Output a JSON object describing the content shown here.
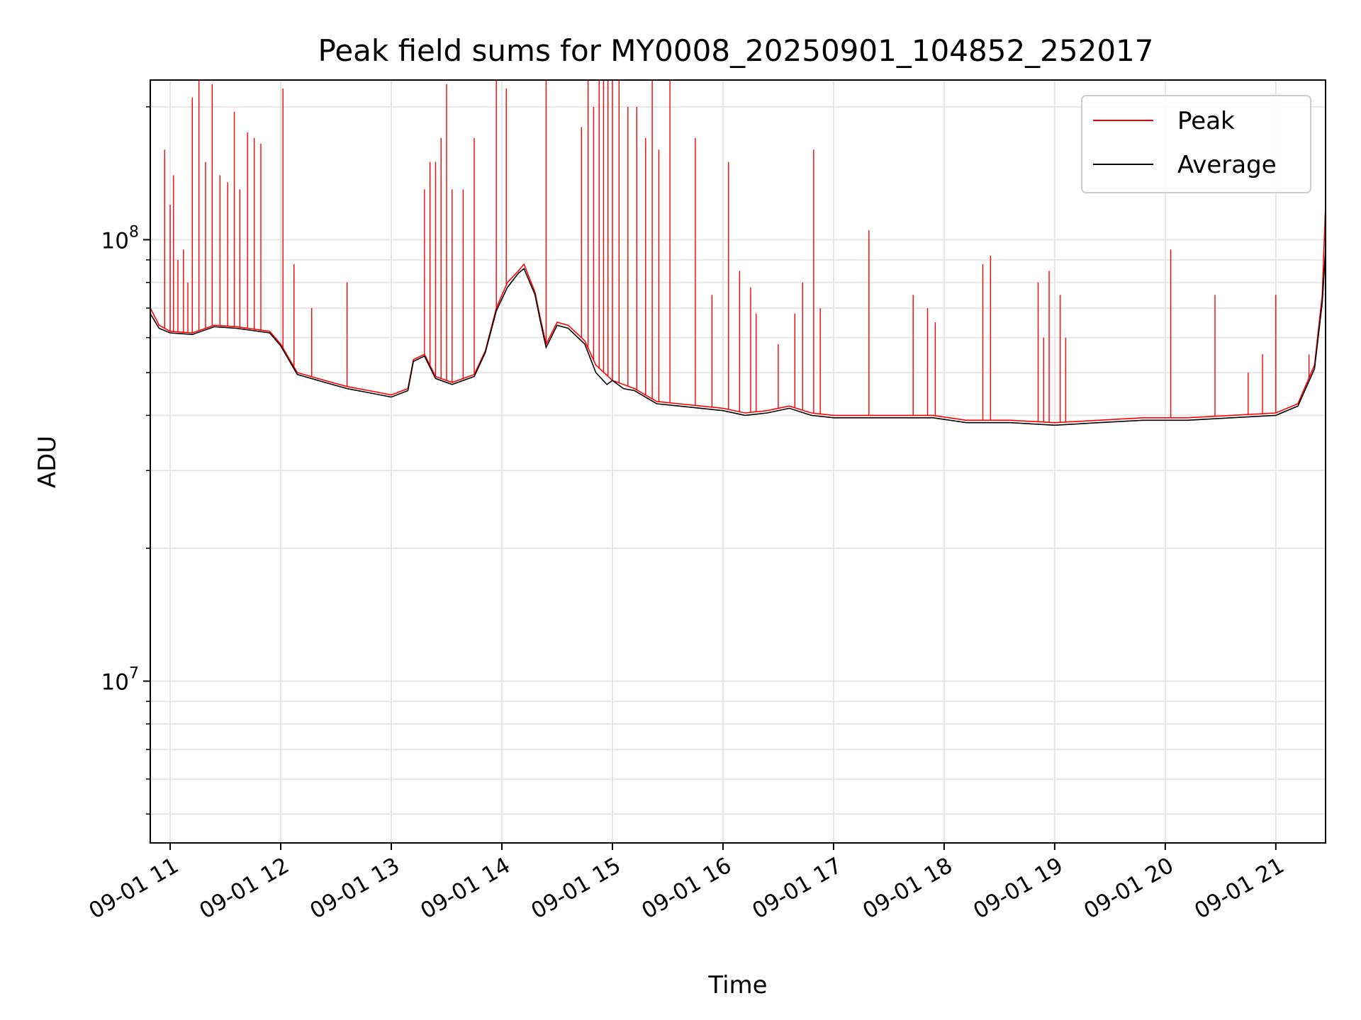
{
  "chart_data": {
    "type": "line",
    "title": "Peak field sums for MY0008_20250901_104852_252017",
    "xlabel": "Time",
    "ylabel": "ADU",
    "yscale": "log",
    "ylim": [
      4300000,
      230000000
    ],
    "xlim_hours": [
      10.82,
      21.45
    ],
    "grid": true,
    "legend_position": "top-right",
    "x_ticks": [
      {
        "hour": 11,
        "label": "09-01 11"
      },
      {
        "hour": 12,
        "label": "09-01 12"
      },
      {
        "hour": 13,
        "label": "09-01 13"
      },
      {
        "hour": 14,
        "label": "09-01 14"
      },
      {
        "hour": 15,
        "label": "09-01 15"
      },
      {
        "hour": 16,
        "label": "09-01 16"
      },
      {
        "hour": 17,
        "label": "09-01 17"
      },
      {
        "hour": 18,
        "label": "09-01 18"
      },
      {
        "hour": 19,
        "label": "09-01 19"
      },
      {
        "hour": 20,
        "label": "09-01 20"
      },
      {
        "hour": 21,
        "label": "09-01 21"
      }
    ],
    "y_ticks": [
      {
        "value": 10000000,
        "base": "10",
        "exp": "7"
      },
      {
        "value": 100000000,
        "base": "10",
        "exp": "8"
      }
    ],
    "series": [
      {
        "name": "Peak",
        "color": "#ff0000",
        "baseline": [
          [
            10.82,
            70000000
          ],
          [
            10.9,
            64000000
          ],
          [
            11.0,
            62000000
          ],
          [
            11.2,
            61500000
          ],
          [
            11.4,
            64000000
          ],
          [
            11.6,
            63500000
          ],
          [
            11.9,
            62000000
          ],
          [
            12.0,
            58000000
          ],
          [
            12.15,
            50000000
          ],
          [
            12.4,
            48000000
          ],
          [
            12.6,
            46500000
          ],
          [
            12.8,
            45500000
          ],
          [
            13.0,
            44500000
          ],
          [
            13.15,
            46000000
          ],
          [
            13.2,
            53500000
          ],
          [
            13.3,
            55000000
          ],
          [
            13.4,
            49000000
          ],
          [
            13.55,
            47500000
          ],
          [
            13.75,
            49500000
          ],
          [
            13.85,
            56000000
          ],
          [
            13.95,
            70000000
          ],
          [
            14.05,
            80000000
          ],
          [
            14.15,
            85000000
          ],
          [
            14.2,
            88000000
          ],
          [
            14.3,
            76000000
          ],
          [
            14.35,
            66000000
          ],
          [
            14.4,
            58000000
          ],
          [
            14.5,
            65000000
          ],
          [
            14.6,
            64000000
          ],
          [
            14.75,
            59000000
          ],
          [
            14.85,
            52000000
          ],
          [
            15.0,
            48000000
          ],
          [
            15.2,
            46000000
          ],
          [
            15.4,
            43000000
          ],
          [
            15.6,
            42500000
          ],
          [
            15.8,
            42000000
          ],
          [
            16.0,
            41500000
          ],
          [
            16.2,
            40500000
          ],
          [
            16.4,
            41000000
          ],
          [
            16.6,
            42000000
          ],
          [
            16.8,
            40500000
          ],
          [
            17.0,
            40000000
          ],
          [
            17.3,
            40000000
          ],
          [
            17.6,
            40000000
          ],
          [
            17.9,
            40000000
          ],
          [
            18.2,
            39000000
          ],
          [
            18.6,
            39000000
          ],
          [
            19.0,
            38500000
          ],
          [
            19.4,
            39000000
          ],
          [
            19.8,
            39500000
          ],
          [
            20.2,
            39500000
          ],
          [
            20.6,
            40000000
          ],
          [
            21.0,
            40500000
          ],
          [
            21.2,
            42500000
          ],
          [
            21.35,
            52000000
          ],
          [
            21.42,
            75000000
          ],
          [
            21.45,
            120000000
          ]
        ],
        "spikes": [
          [
            10.95,
            160000000
          ],
          [
            11.0,
            120000000
          ],
          [
            11.03,
            140000000
          ],
          [
            11.07,
            90000000
          ],
          [
            11.12,
            95000000
          ],
          [
            11.16,
            80000000
          ],
          [
            11.2,
            210000000
          ],
          [
            11.26,
            230000000
          ],
          [
            11.32,
            150000000
          ],
          [
            11.38,
            225000000
          ],
          [
            11.45,
            140000000
          ],
          [
            11.52,
            135000000
          ],
          [
            11.58,
            195000000
          ],
          [
            11.63,
            130000000
          ],
          [
            11.7,
            175000000
          ],
          [
            11.76,
            170000000
          ],
          [
            11.82,
            165000000
          ],
          [
            12.02,
            220000000
          ],
          [
            12.12,
            88000000
          ],
          [
            12.28,
            70000000
          ],
          [
            12.6,
            80000000
          ],
          [
            13.3,
            130000000
          ],
          [
            13.35,
            150000000
          ],
          [
            13.4,
            150000000
          ],
          [
            13.45,
            170000000
          ],
          [
            13.5,
            225000000
          ],
          [
            13.55,
            130000000
          ],
          [
            13.65,
            130000000
          ],
          [
            13.75,
            170000000
          ],
          [
            13.95,
            230000000
          ],
          [
            14.04,
            220000000
          ],
          [
            14.4,
            230000000
          ],
          [
            14.72,
            180000000
          ],
          [
            14.78,
            230000000
          ],
          [
            14.83,
            200000000
          ],
          [
            14.88,
            230000000
          ],
          [
            14.92,
            230000000
          ],
          [
            14.96,
            230000000
          ],
          [
            15.0,
            230000000
          ],
          [
            15.06,
            230000000
          ],
          [
            15.14,
            200000000
          ],
          [
            15.22,
            200000000
          ],
          [
            15.3,
            170000000
          ],
          [
            15.36,
            230000000
          ],
          [
            15.42,
            160000000
          ],
          [
            15.52,
            230000000
          ],
          [
            15.75,
            170000000
          ],
          [
            15.9,
            75000000
          ],
          [
            16.05,
            150000000
          ],
          [
            16.15,
            85000000
          ],
          [
            16.25,
            78000000
          ],
          [
            16.3,
            68000000
          ],
          [
            16.5,
            58000000
          ],
          [
            16.65,
            68000000
          ],
          [
            16.72,
            80000000
          ],
          [
            16.82,
            160000000
          ],
          [
            16.88,
            70000000
          ],
          [
            17.32,
            105000000
          ],
          [
            17.72,
            75000000
          ],
          [
            17.85,
            70000000
          ],
          [
            17.92,
            65000000
          ],
          [
            18.35,
            88000000
          ],
          [
            18.42,
            92000000
          ],
          [
            18.85,
            80000000
          ],
          [
            18.9,
            60000000
          ],
          [
            18.95,
            85000000
          ],
          [
            19.05,
            75000000
          ],
          [
            19.1,
            60000000
          ],
          [
            20.05,
            95000000
          ],
          [
            20.45,
            75000000
          ],
          [
            20.75,
            50000000
          ],
          [
            20.88,
            55000000
          ],
          [
            21.0,
            75000000
          ],
          [
            21.3,
            55000000
          ],
          [
            21.45,
            120000000
          ]
        ]
      },
      {
        "name": "Average",
        "color": "#000000",
        "points": [
          [
            10.82,
            68000000
          ],
          [
            10.9,
            63000000
          ],
          [
            11.0,
            61500000
          ],
          [
            11.2,
            61000000
          ],
          [
            11.4,
            63500000
          ],
          [
            11.6,
            63000000
          ],
          [
            11.9,
            61500000
          ],
          [
            12.0,
            57500000
          ],
          [
            12.15,
            49500000
          ],
          [
            12.4,
            47500000
          ],
          [
            12.6,
            46000000
          ],
          [
            12.8,
            45000000
          ],
          [
            13.0,
            44000000
          ],
          [
            13.15,
            45500000
          ],
          [
            13.2,
            53000000
          ],
          [
            13.3,
            54500000
          ],
          [
            13.4,
            48500000
          ],
          [
            13.55,
            47000000
          ],
          [
            13.75,
            49000000
          ],
          [
            13.85,
            55500000
          ],
          [
            13.95,
            69000000
          ],
          [
            14.05,
            78000000
          ],
          [
            14.15,
            84000000
          ],
          [
            14.2,
            86000000
          ],
          [
            14.3,
            75000000
          ],
          [
            14.35,
            65000000
          ],
          [
            14.4,
            57000000
          ],
          [
            14.5,
            64000000
          ],
          [
            14.6,
            63000000
          ],
          [
            14.75,
            58000000
          ],
          [
            14.85,
            50000000
          ],
          [
            14.95,
            47000000
          ],
          [
            15.0,
            48000000
          ],
          [
            15.1,
            46000000
          ],
          [
            15.2,
            45500000
          ],
          [
            15.4,
            42500000
          ],
          [
            15.6,
            42000000
          ],
          [
            15.8,
            41500000
          ],
          [
            16.0,
            41000000
          ],
          [
            16.2,
            40000000
          ],
          [
            16.4,
            40500000
          ],
          [
            16.6,
            41500000
          ],
          [
            16.8,
            40000000
          ],
          [
            17.0,
            39500000
          ],
          [
            17.3,
            39500000
          ],
          [
            17.6,
            39500000
          ],
          [
            17.9,
            39500000
          ],
          [
            18.2,
            38500000
          ],
          [
            18.6,
            38500000
          ],
          [
            19.0,
            38000000
          ],
          [
            19.4,
            38500000
          ],
          [
            19.8,
            39000000
          ],
          [
            20.2,
            39000000
          ],
          [
            20.6,
            39500000
          ],
          [
            21.0,
            40000000
          ],
          [
            21.2,
            42000000
          ],
          [
            21.35,
            51000000
          ],
          [
            21.42,
            72000000
          ],
          [
            21.45,
            95000000
          ]
        ]
      }
    ]
  }
}
